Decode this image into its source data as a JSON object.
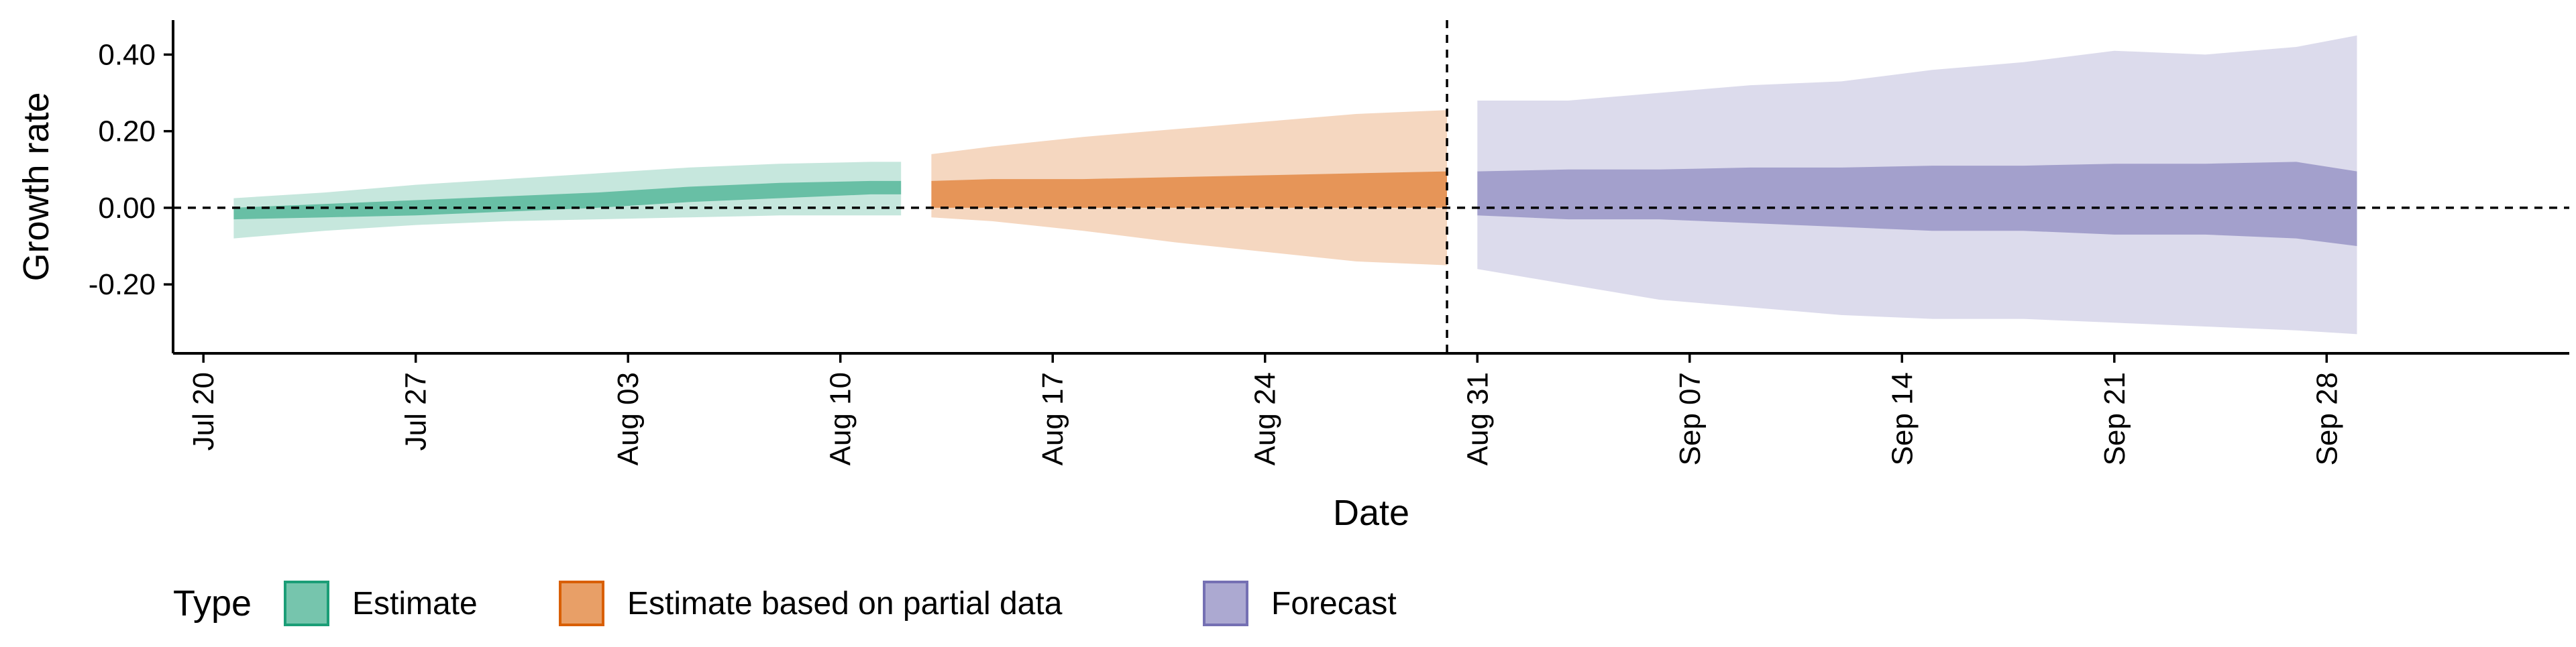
{
  "chart_data": {
    "type": "area",
    "title": "",
    "xlabel": "Date",
    "ylabel": "Growth rate",
    "x_ticks": [
      "Jul 20",
      "Jul 27",
      "Aug 03",
      "Aug 10",
      "Aug 17",
      "Aug 24",
      "Aug 31",
      "Sep 07",
      "Sep 14",
      "Sep 21",
      "Sep 28"
    ],
    "x_tick_dates": [
      "2020-07-20",
      "2020-07-27",
      "2020-08-03",
      "2020-08-10",
      "2020-08-17",
      "2020-08-24",
      "2020-08-31",
      "2020-09-07",
      "2020-09-14",
      "2020-09-21",
      "2020-09-28"
    ],
    "y_ticks": [
      0.4,
      0.2,
      0.0,
      -0.2
    ],
    "y_tick_labels": [
      "0.40",
      "0.20",
      "0.00",
      "-0.20"
    ],
    "xlim": [
      "2020-07-19",
      "2020-10-06"
    ],
    "ylim": [
      -0.38,
      0.49
    ],
    "hline": 0.0,
    "vline": "2020-08-30",
    "grid": false,
    "legend": {
      "title": "Type",
      "position": "bottom-left"
    },
    "series": [
      {
        "name": "Estimate",
        "color": "#1b9e77",
        "x": [
          "2020-07-21",
          "2020-07-24",
          "2020-07-27",
          "2020-07-30",
          "2020-08-02",
          "2020-08-05",
          "2020-08-08",
          "2020-08-11",
          "2020-08-12"
        ],
        "inner_lower": [
          -0.03,
          -0.025,
          -0.02,
          -0.01,
          0.0,
          0.015,
          0.025,
          0.035,
          0.035
        ],
        "inner_upper": [
          0.0,
          0.01,
          0.02,
          0.03,
          0.04,
          0.055,
          0.065,
          0.07,
          0.07
        ],
        "outer_lower": [
          -0.08,
          -0.06,
          -0.045,
          -0.035,
          -0.03,
          -0.025,
          -0.02,
          -0.02,
          -0.02
        ],
        "outer_upper": [
          0.025,
          0.04,
          0.06,
          0.075,
          0.09,
          0.105,
          0.115,
          0.12,
          0.12
        ]
      },
      {
        "name": "Estimate based on partial data",
        "color": "#d95f02",
        "x": [
          "2020-08-13",
          "2020-08-15",
          "2020-08-18",
          "2020-08-21",
          "2020-08-24",
          "2020-08-27",
          "2020-08-30"
        ],
        "inner_lower": [
          0.0,
          0.0,
          0.0,
          0.0,
          0.0,
          0.0,
          0.0
        ],
        "inner_upper": [
          0.07,
          0.075,
          0.075,
          0.08,
          0.085,
          0.09,
          0.095
        ],
        "outer_lower": [
          -0.025,
          -0.035,
          -0.06,
          -0.09,
          -0.115,
          -0.14,
          -0.15
        ],
        "outer_upper": [
          0.14,
          0.16,
          0.185,
          0.205,
          0.225,
          0.245,
          0.255
        ]
      },
      {
        "name": "Forecast",
        "color": "#7570b3",
        "x": [
          "2020-08-31",
          "2020-09-03",
          "2020-09-06",
          "2020-09-09",
          "2020-09-12",
          "2020-09-15",
          "2020-09-18",
          "2020-09-21",
          "2020-09-24",
          "2020-09-27",
          "2020-09-29"
        ],
        "inner_lower": [
          -0.02,
          -0.03,
          -0.03,
          -0.04,
          -0.05,
          -0.06,
          -0.06,
          -0.07,
          -0.07,
          -0.08,
          -0.1
        ],
        "inner_upper": [
          0.095,
          0.1,
          0.1,
          0.105,
          0.105,
          0.11,
          0.11,
          0.115,
          0.115,
          0.12,
          0.095
        ],
        "outer_lower": [
          -0.16,
          -0.2,
          -0.24,
          -0.26,
          -0.28,
          -0.29,
          -0.29,
          -0.3,
          -0.31,
          -0.32,
          -0.33
        ],
        "outer_upper": [
          0.28,
          0.28,
          0.3,
          0.32,
          0.33,
          0.36,
          0.38,
          0.41,
          0.4,
          0.42,
          0.45
        ]
      }
    ]
  }
}
